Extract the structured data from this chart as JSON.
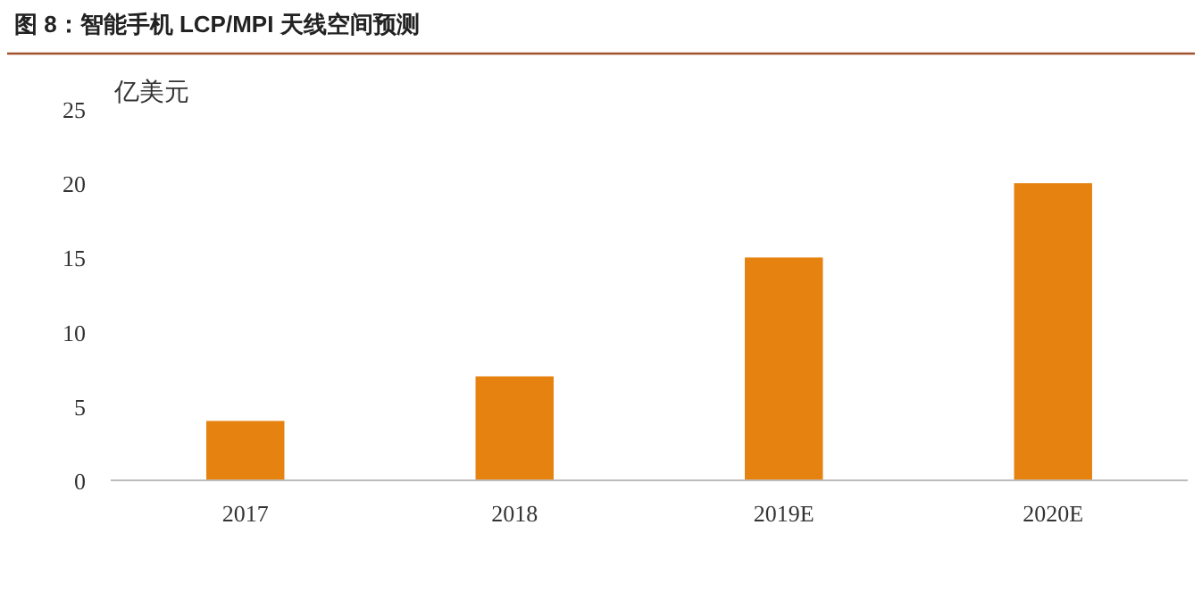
{
  "chart_data": {
    "type": "bar",
    "title": "图 8：智能手机 LCP/MPI 天线空间预测",
    "ylabel": "亿美元",
    "categories": [
      "2017",
      "2018",
      "2019E",
      "2020E"
    ],
    "series": [
      {
        "color": "#e6820f",
        "values": [
          4,
          7,
          15,
          20
        ]
      }
    ],
    "ylim": [
      0,
      25
    ],
    "yticks": [
      0,
      5,
      10,
      15,
      20,
      25
    ]
  }
}
